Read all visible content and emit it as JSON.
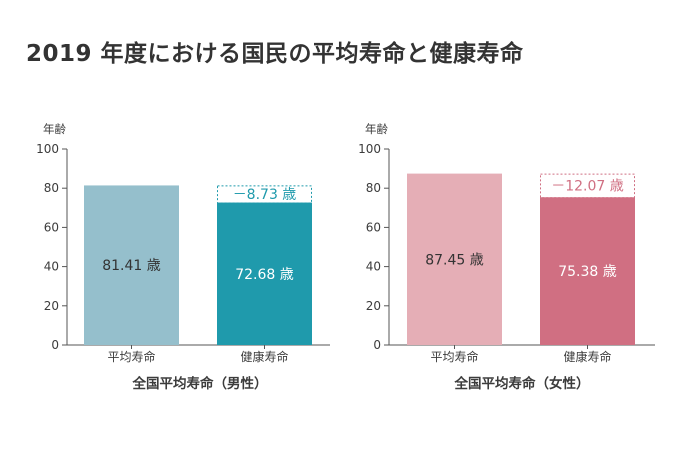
{
  "title": "2019 年度における国民の平均寿命と健康寿命",
  "chart_data": [
    {
      "type": "bar",
      "title": "全国平均寿命（男性）",
      "ylabel": "年齢",
      "ylim": [
        0,
        100
      ],
      "yticks": [
        0,
        20,
        40,
        60,
        80,
        100
      ],
      "categories": [
        "平均寿命",
        "健康寿命"
      ],
      "values": [
        81.41,
        72.68
      ],
      "value_labels": [
        "81.41 歳",
        "72.68 歳"
      ],
      "difference_label": "－8.73 歳",
      "colors": [
        "#95bfcc",
        "#1f9aac"
      ],
      "value_label_colors": [
        "#333333",
        "#ffffff"
      ],
      "difference_color": "#1f9aac"
    },
    {
      "type": "bar",
      "title": "全国平均寿命（女性）",
      "ylabel": "年齢",
      "ylim": [
        0,
        100
      ],
      "yticks": [
        0,
        20,
        40,
        60,
        80,
        100
      ],
      "categories": [
        "平均寿命",
        "健康寿命"
      ],
      "values": [
        87.45,
        75.38
      ],
      "value_labels": [
        "87.45 歳",
        "75.38 歳"
      ],
      "difference_label": "－12.07 歳",
      "colors": [
        "#e5aeb6",
        "#d06f82"
      ],
      "value_label_colors": [
        "#333333",
        "#ffffff"
      ],
      "difference_color": "#d06f82"
    }
  ]
}
